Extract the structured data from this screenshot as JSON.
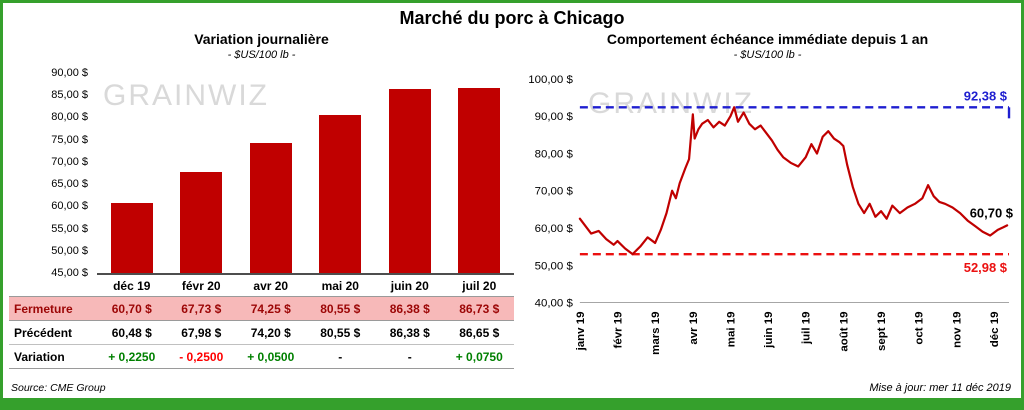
{
  "page": {
    "title": "Marché du porc à Chicago",
    "source": "Source: CME Group",
    "updated": "Mise à jour: mer 11 déc 2019",
    "watermark": "GRAINWIZ"
  },
  "colors": {
    "bar": "#c00000",
    "line": "#c00000",
    "ref_high": "#1f1fd0",
    "ref_low": "#eb1010",
    "positive": "#008000",
    "negative": "#ff0000",
    "accent_green": "#35a02c",
    "closure_bg": "#f7b9b9",
    "closure_text": "#9c0606"
  },
  "chart_data": [
    {
      "type": "bar",
      "title": "Variation journalière",
      "subtitle": "- $US/100 lb -",
      "categories": [
        "déc 19",
        "févr 20",
        "avr 20",
        "mai 20",
        "juin 20",
        "juil 20"
      ],
      "values": [
        60.7,
        67.73,
        74.25,
        80.55,
        86.38,
        86.73
      ],
      "xlabel": "",
      "ylabel": "$US/100 lb",
      "ylim": [
        45,
        90
      ],
      "ytick_step": 5,
      "ytick_labels": [
        "90,00 $",
        "85,00 $",
        "80,00 $",
        "75,00 $",
        "70,00 $",
        "65,00 $",
        "60,00 $",
        "55,00 $",
        "50,00 $",
        "45,00 $"
      ],
      "grid": false,
      "legend": "none"
    },
    {
      "type": "line",
      "title": "Comportement échéance immédiate depuis 1 an",
      "subtitle": "- $US/100 lb -",
      "xlabel": "",
      "ylabel": "$US/100 lb",
      "ylim": [
        40,
        100
      ],
      "ytick_step": 10,
      "ytick_labels": [
        "100,00 $",
        "90,00 $",
        "80,00 $",
        "70,00 $",
        "60,00 $",
        "50,00 $",
        "40,00 $"
      ],
      "x_labels": [
        "janv 19",
        "févr 19",
        "mars 19",
        "avr 19",
        "mai 19",
        "juin 19",
        "juil 19",
        "août 19",
        "sept 19",
        "oct 19",
        "nov 19",
        "déc 19"
      ],
      "xmax": 11.4,
      "grid": false,
      "legend": "none",
      "x": [
        0,
        0.15,
        0.3,
        0.5,
        0.7,
        0.9,
        1.0,
        1.2,
        1.4,
        1.6,
        1.8,
        2.0,
        2.15,
        2.3,
        2.45,
        2.55,
        2.65,
        2.8,
        2.9,
        3.0,
        3.05,
        3.15,
        3.25,
        3.4,
        3.55,
        3.7,
        3.85,
        4.0,
        4.1,
        4.2,
        4.35,
        4.5,
        4.65,
        4.8,
        4.95,
        5.1,
        5.25,
        5.4,
        5.6,
        5.8,
        6.0,
        6.15,
        6.3,
        6.45,
        6.6,
        6.75,
        6.9,
        7.0,
        7.1,
        7.25,
        7.4,
        7.55,
        7.7,
        7.85,
        8.0,
        8.15,
        8.3,
        8.5,
        8.7,
        8.9,
        9.1,
        9.25,
        9.4,
        9.55,
        9.7,
        9.9,
        10.1,
        10.3,
        10.5,
        10.7,
        10.9,
        11.1,
        11.25,
        11.35
      ],
      "y": [
        62.5,
        60.5,
        58.5,
        59.2,
        57.0,
        55.5,
        56.5,
        54.5,
        52.98,
        55.0,
        57.5,
        56.0,
        59.5,
        64.0,
        70.0,
        68.0,
        72.0,
        76.0,
        78.5,
        90.5,
        84.0,
        86.5,
        88.0,
        89.0,
        87.0,
        88.5,
        87.5,
        90.0,
        92.38,
        88.5,
        91.0,
        88.0,
        86.5,
        87.5,
        85.5,
        83.5,
        81.0,
        79.0,
        77.5,
        76.5,
        79.0,
        82.5,
        80.0,
        84.5,
        86.0,
        84.0,
        83.0,
        82.0,
        77.0,
        71.0,
        66.5,
        64.0,
        66.5,
        63.0,
        64.5,
        62.5,
        66.0,
        64.0,
        65.5,
        66.5,
        68.0,
        71.5,
        68.5,
        67.0,
        66.5,
        65.5,
        64.0,
        62.0,
        60.5,
        59.0,
        58.0,
        59.5,
        60.2,
        60.7
      ],
      "line_color": "#c00000",
      "ref_lines": [
        {
          "value": 92.38,
          "label": "92,38 $",
          "color": "#1f1fd0",
          "style": "dashed"
        },
        {
          "value": 52.98,
          "label": "52,98 $",
          "color": "#eb1010",
          "style": "dashed"
        }
      ],
      "end_label": {
        "value": 60.7,
        "label": "60,70 $",
        "color": "#000000"
      }
    }
  ],
  "table": {
    "columns": [
      "déc 19",
      "févr 20",
      "avr 20",
      "mai 20",
      "juin 20",
      "juil 20"
    ],
    "rows": [
      {
        "label": "Fermeture",
        "style": "closure",
        "values": [
          "60,70 $",
          "67,73 $",
          "74,25 $",
          "80,55 $",
          "86,38 $",
          "86,73 $"
        ]
      },
      {
        "label": "Précédent",
        "style": "previous",
        "values": [
          "60,48 $",
          "67,98 $",
          "74,20 $",
          "80,55 $",
          "86,38 $",
          "86,65 $"
        ]
      },
      {
        "label": "Variation",
        "style": "variation",
        "values": [
          "+ 0,2250",
          "- 0,2500",
          "+ 0,0500",
          "-",
          "-",
          "+ 0,0750"
        ],
        "signs": [
          "pos",
          "neg",
          "pos",
          "none",
          "none",
          "pos"
        ]
      }
    ]
  }
}
